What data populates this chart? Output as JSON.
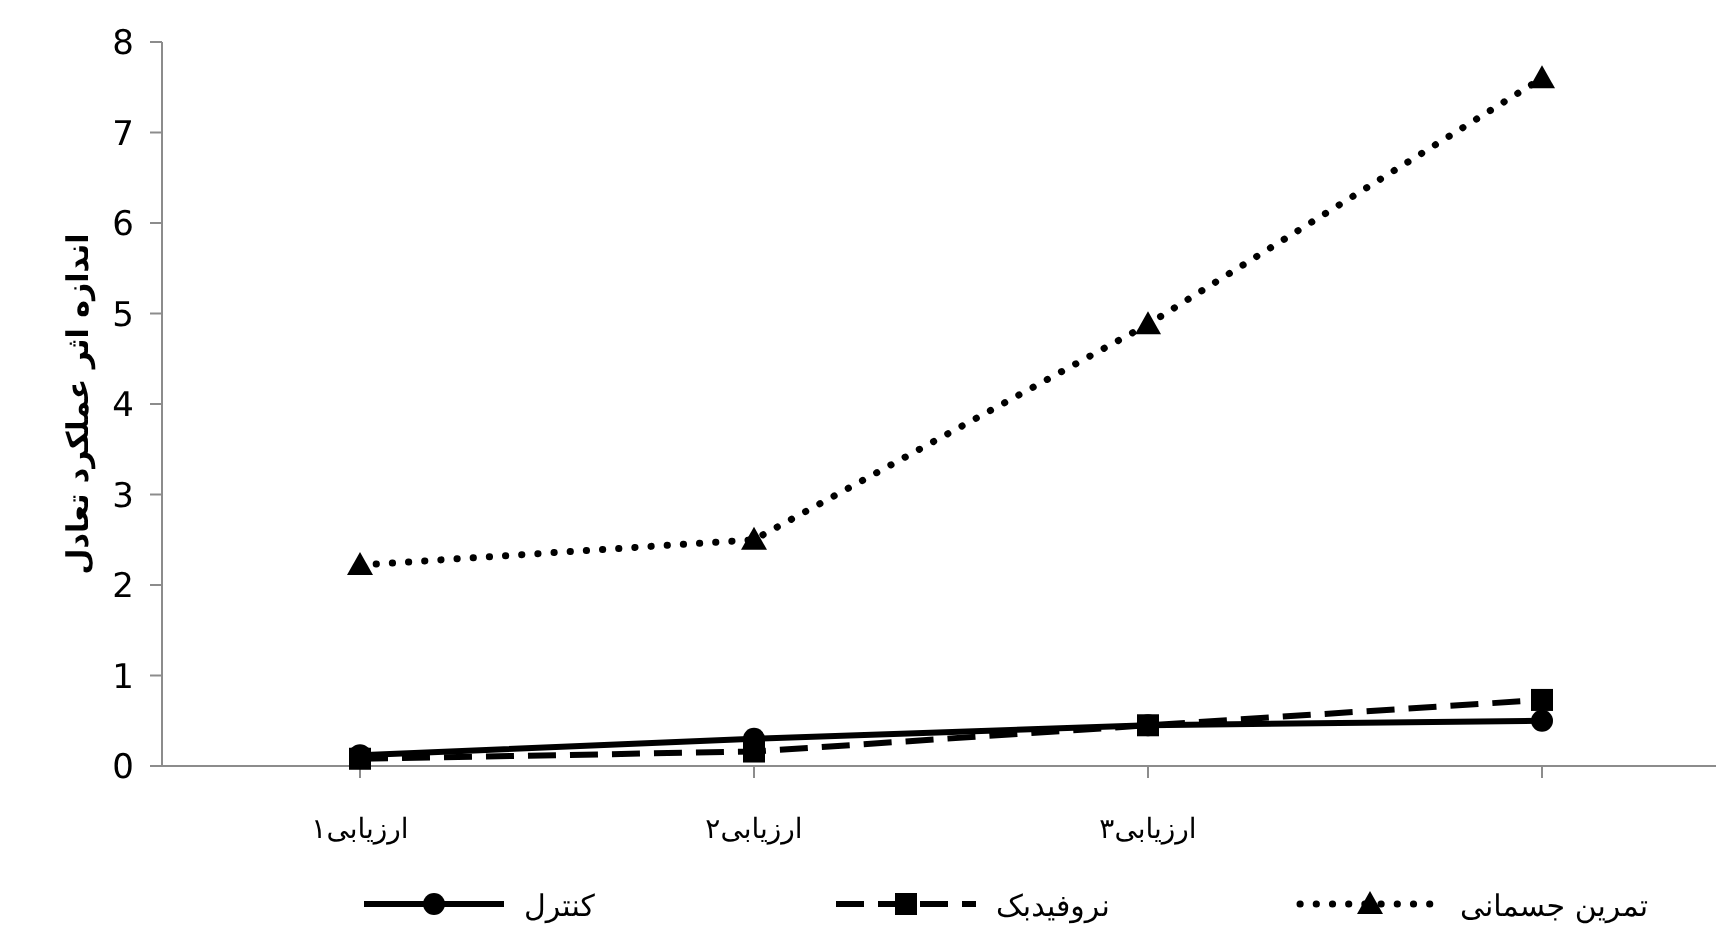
{
  "chart_data": {
    "type": "line",
    "ylabel": "اندازه اثر عملکرد تعادل",
    "categories": [
      "ارزیابی۱",
      "ارزیابی۲",
      "ارزیابی۳",
      null
    ],
    "series": [
      {
        "name": "کنترل",
        "color": "#000000",
        "marker": "circle",
        "line_style": "solid",
        "values": [
          0.12,
          0.3,
          0.45,
          0.5
        ]
      },
      {
        "name": "نروفیدبک",
        "color": "#000000",
        "marker": "square",
        "line_style": "dashed",
        "values": [
          0.08,
          0.16,
          0.45,
          0.73
        ]
      },
      {
        "name": "تمرین جسمانی",
        "color": "#000000",
        "marker": "triangle",
        "line_style": "dotted",
        "values": [
          2.22,
          2.5,
          4.88,
          7.6
        ]
      }
    ],
    "ylim": [
      0,
      8
    ],
    "yticks": [
      0,
      1,
      2,
      3,
      4,
      5,
      6,
      7,
      8
    ],
    "legend": "bottom"
  }
}
